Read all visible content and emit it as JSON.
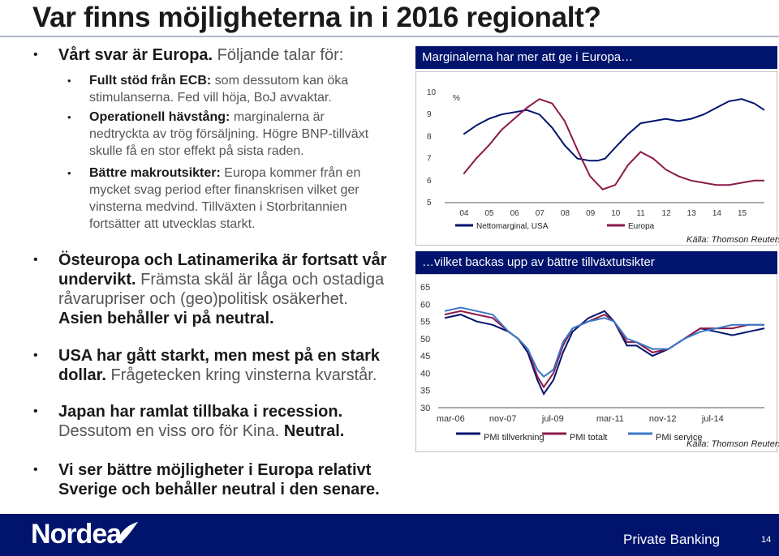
{
  "slide": {
    "title": "Var finns möjligheterna in i 2016 regionalt?",
    "page_number": "14",
    "footer_brand": "Nordea",
    "footer_right": "Private Banking"
  },
  "bullets": {
    "b1": {
      "bold": "Vårt svar är Europa.",
      "rest": " Följande talar för:"
    },
    "s1": {
      "bold": "Fullt stöd från ECB:",
      "rest": " som dessutom kan öka stimulanserna. Fed vill höja, BoJ avvaktar."
    },
    "s2": {
      "bold": "Operationell hävstång:",
      "rest": " marginalerna är nedtryckta av trög försäljning. Högre BNP-tillväxt skulle få en stor effekt på sista raden."
    },
    "s3": {
      "bold": "Bättre makroutsikter:",
      "rest": " Europa kommer från en mycket svag period efter finanskrisen vilket ger vinsterna medvind. Tillväxten i Storbritannien fortsätter att utvecklas starkt."
    },
    "b2": {
      "bold": "Östeuropa och Latinamerika är fortsatt vår undervikt.",
      "rest": " Främsta skäl är låga och ostadiga råvarupriser och (geo)politisk osäkerhet. ",
      "bold2": "Asien behåller vi på neutral."
    },
    "b3": {
      "bold": "USA har gått starkt, men mest på en stark dollar.",
      "rest": " Frågetecken kring vinsterna kvarstår."
    },
    "b4": {
      "bold": "Japan har ramlat tillbaka i recession.",
      "rest": " Dessutom en viss oro för Kina. ",
      "bold2": "Neutral."
    },
    "b5": {
      "bold": "Vi ser bättre möjligheter i Europa relativt Sverige och behåller neutral i den senare.",
      "rest": ""
    }
  },
  "chart_data": [
    {
      "type": "line",
      "title": "Marginalerna har mer att ge i Europa…",
      "ylabel": "%",
      "ylim": [
        5,
        10
      ],
      "yticks": [
        "10",
        "9",
        "8",
        "7",
        "6",
        "5"
      ],
      "x_ticks": [
        "04",
        "05",
        "06",
        "07",
        "08",
        "09",
        "10",
        "11",
        "12",
        "13",
        "14",
        "15"
      ],
      "xlim": [
        2003.7,
        2015.9
      ],
      "source": "Källa: Thomson Reuters",
      "series": [
        {
          "name": "Nettomarginal, USA",
          "color": "#00146e",
          "x": [
            2004,
            2004.5,
            2005,
            2005.5,
            2006,
            2006.5,
            2007,
            2007.5,
            2008,
            2008.5,
            2009,
            2009.3,
            2009.6,
            2010,
            2010.5,
            2011,
            2011.5,
            2012,
            2012.5,
            2013,
            2013.5,
            2014,
            2014.5,
            2015,
            2015.5,
            2015.9
          ],
          "y": [
            8.1,
            8.5,
            8.8,
            9.0,
            9.1,
            9.2,
            9.0,
            8.4,
            7.6,
            7.0,
            6.9,
            6.9,
            7.0,
            7.5,
            8.1,
            8.6,
            8.7,
            8.8,
            8.7,
            8.8,
            9.0,
            9.3,
            9.6,
            9.7,
            9.5,
            9.2
          ]
        },
        {
          "name": "Europa",
          "color": "#8b1a4a",
          "x": [
            2004,
            2004.5,
            2005,
            2005.5,
            2006,
            2006.5,
            2007,
            2007.5,
            2008,
            2008.5,
            2009,
            2009.5,
            2010,
            2010.5,
            2011,
            2011.5,
            2012,
            2012.5,
            2013,
            2013.5,
            2014,
            2014.5,
            2015,
            2015.5,
            2015.9
          ],
          "y": [
            6.3,
            7.0,
            7.6,
            8.3,
            8.8,
            9.3,
            9.7,
            9.5,
            8.7,
            7.4,
            6.2,
            5.6,
            5.8,
            6.7,
            7.3,
            7.0,
            6.5,
            6.2,
            6.0,
            5.9,
            5.8,
            5.8,
            5.9,
            6.0,
            6.0
          ]
        }
      ]
    },
    {
      "type": "line",
      "title": "…vilket backas upp av bättre tillväxtutsikter",
      "ylim": [
        30,
        65
      ],
      "yticks": [
        "65",
        "60",
        "55",
        "50",
        "45",
        "40",
        "35",
        "30"
      ],
      "x_ticks": [
        "mar-06",
        "nov-07",
        "jul-09",
        "mar-11",
        "nov-12",
        "jul-14"
      ],
      "xlim": [
        2006.0,
        2016.0
      ],
      "source": "Källa: Thomson Reuters",
      "series": [
        {
          "name": "PMI tillverkning",
          "color": "#00146e",
          "x": [
            2006.0,
            2006.5,
            2007.0,
            2007.5,
            2008.0,
            2008.3,
            2008.6,
            2008.9,
            2009.1,
            2009.4,
            2009.7,
            2010.0,
            2010.5,
            2011.0,
            2011.3,
            2011.7,
            2012.0,
            2012.5,
            2013.0,
            2013.5,
            2014.0,
            2014.5,
            2015.0,
            2015.5,
            2016.0
          ],
          "y": [
            56,
            57,
            55,
            54,
            52,
            50,
            46,
            38,
            34,
            38,
            46,
            52,
            56,
            58,
            55,
            48,
            48,
            45,
            47,
            50,
            53,
            52,
            51,
            52,
            53
          ]
        },
        {
          "name": "PMI totalt",
          "color": "#8b1a4a",
          "x": [
            2006.0,
            2006.5,
            2007.0,
            2007.5,
            2008.0,
            2008.3,
            2008.6,
            2008.9,
            2009.1,
            2009.4,
            2009.7,
            2010.0,
            2010.5,
            2011.0,
            2011.3,
            2011.7,
            2012.0,
            2012.5,
            2013.0,
            2013.5,
            2014.0,
            2014.5,
            2015.0,
            2015.5,
            2016.0
          ],
          "y": [
            57,
            58,
            57,
            56,
            52,
            50,
            47,
            39,
            36,
            40,
            48,
            53,
            55,
            57,
            55,
            49,
            49,
            46,
            47,
            50,
            53,
            53,
            53,
            54,
            54
          ]
        },
        {
          "name": "PMI service",
          "color": "#3a78c9",
          "x": [
            2006.0,
            2006.5,
            2007.0,
            2007.5,
            2008.0,
            2008.3,
            2008.6,
            2008.9,
            2009.1,
            2009.4,
            2009.7,
            2010.0,
            2010.5,
            2011.0,
            2011.3,
            2011.7,
            2012.0,
            2012.5,
            2013.0,
            2013.5,
            2014.0,
            2014.5,
            2015.0,
            2015.5,
            2016.0
          ],
          "y": [
            58,
            59,
            58,
            57,
            52,
            50,
            47,
            41,
            39,
            41,
            49,
            53,
            55,
            56,
            55,
            50,
            49,
            47,
            47,
            50,
            52,
            53,
            54,
            54,
            54
          ]
        }
      ]
    }
  ]
}
